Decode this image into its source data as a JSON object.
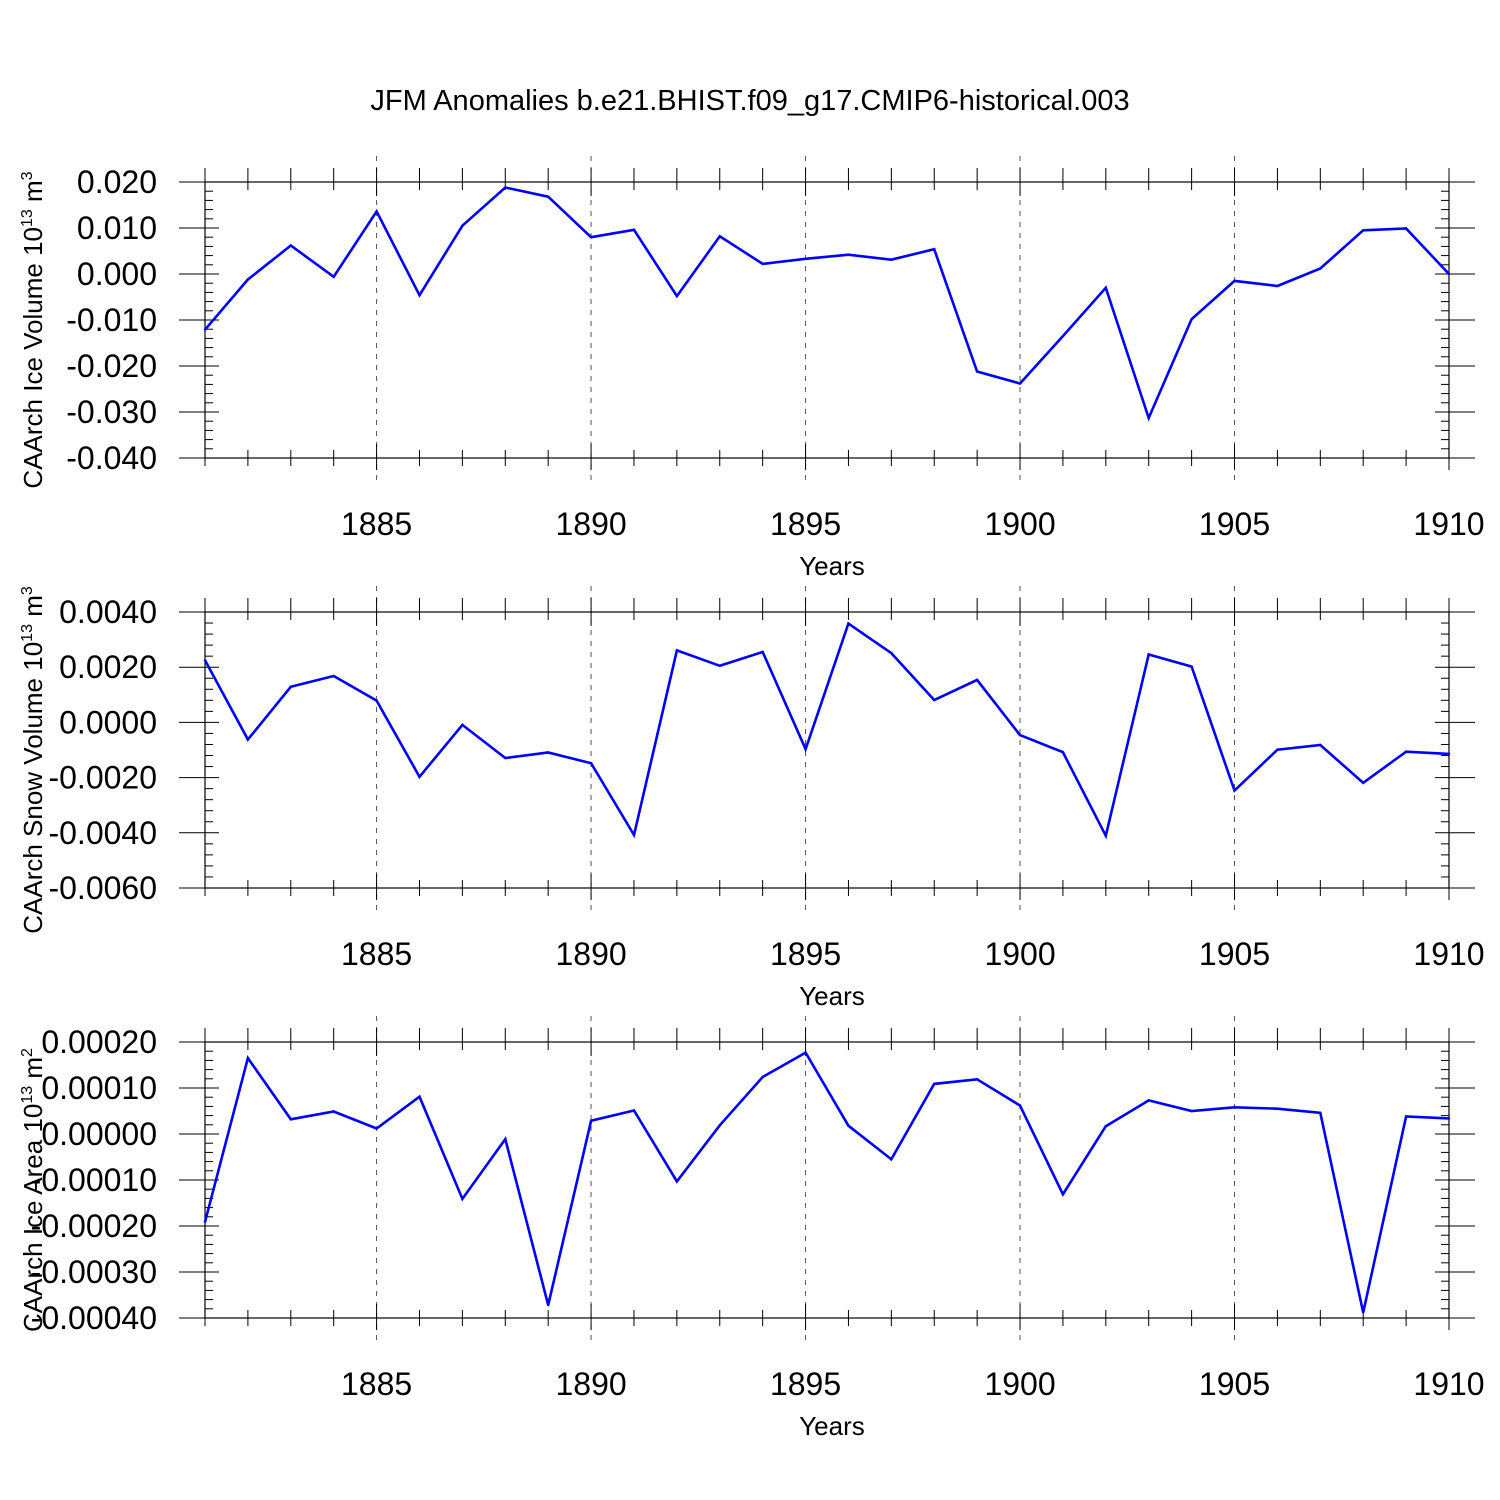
{
  "title": "JFM Anomalies b.e21.BHIST.f09_g17.CMIP6-historical.003",
  "line_color": "#0000ff",
  "chart_data": [
    {
      "type": "line",
      "ylabel_prefix": "CAArch Ice Volume 10",
      "ylabel_exp_base": "13",
      "ylabel_unit": " m",
      "ylabel_exp_unit": "3",
      "xlabel": "Years",
      "xlim": [
        1881,
        1910
      ],
      "ylim": [
        -0.04,
        0.02
      ],
      "x_ticks": [
        1885,
        1890,
        1895,
        1900,
        1905,
        1910
      ],
      "y_ticks": [
        0.02,
        0.01,
        0.0,
        -0.01,
        -0.02,
        -0.03,
        -0.04
      ],
      "y_tick_labels": [
        "0.020",
        "0.010",
        "0.000",
        "-0.010",
        "-0.020",
        "-0.030",
        "-0.040"
      ],
      "x": [
        1881,
        1882,
        1883,
        1884,
        1885,
        1886,
        1887,
        1888,
        1889,
        1890,
        1891,
        1892,
        1893,
        1894,
        1895,
        1896,
        1897,
        1898,
        1899,
        1900,
        1901,
        1902,
        1903,
        1904,
        1905,
        1906,
        1907,
        1908,
        1909,
        1910
      ],
      "values": [
        -0.0121,
        -0.0012,
        0.0062,
        -0.0006,
        0.0136,
        -0.0046,
        0.0105,
        0.0188,
        0.0168,
        0.008,
        0.0096,
        -0.0048,
        0.0082,
        0.0022,
        0.0033,
        0.0042,
        0.0031,
        0.0054,
        -0.0212,
        -0.0238,
        -0.0135,
        -0.003,
        -0.0313,
        -0.0098,
        -0.0015,
        -0.0026,
        0.0012,
        0.0095,
        0.0099,
        0.0
      ]
    },
    {
      "type": "line",
      "ylabel_prefix": "CAArch Snow Volume 10",
      "ylabel_exp_base": "13",
      "ylabel_unit": " m",
      "ylabel_exp_unit": "3",
      "xlabel": "Years",
      "xlim": [
        1881,
        1910
      ],
      "ylim": [
        -0.006,
        0.004
      ],
      "x_ticks": [
        1885,
        1890,
        1895,
        1900,
        1905,
        1910
      ],
      "y_ticks": [
        0.004,
        0.002,
        0.0,
        -0.002,
        -0.004,
        -0.006
      ],
      "y_tick_labels": [
        "0.0040",
        "0.0020",
        "0.0000",
        "-0.0020",
        "-0.0040",
        "-0.0060"
      ],
      "x": [
        1881,
        1882,
        1883,
        1884,
        1885,
        1886,
        1887,
        1888,
        1889,
        1890,
        1891,
        1892,
        1893,
        1894,
        1895,
        1896,
        1897,
        1898,
        1899,
        1900,
        1901,
        1902,
        1903,
        1904,
        1905,
        1906,
        1907,
        1908,
        1909,
        1910
      ],
      "values": [
        0.00225,
        -0.00062,
        0.00129,
        0.00168,
        0.00079,
        -0.00197,
        -9e-05,
        -0.00129,
        -0.00109,
        -0.00148,
        -0.00408,
        0.00261,
        0.00205,
        0.00255,
        -0.00097,
        0.00358,
        0.00251,
        0.00081,
        0.00154,
        -0.00046,
        -0.00108,
        -0.00411,
        0.00246,
        0.00202,
        -0.00247,
        -0.00099,
        -0.00082,
        -0.00219,
        -0.00106,
        -0.00114
      ]
    },
    {
      "type": "line",
      "ylabel_prefix": "CAArch Ice Area 10",
      "ylabel_exp_base": "13",
      "ylabel_unit": " m",
      "ylabel_exp_unit": "2",
      "xlabel": "Years",
      "xlim": [
        1881,
        1910
      ],
      "ylim": [
        -0.0004,
        0.0002
      ],
      "x_ticks": [
        1885,
        1890,
        1895,
        1900,
        1905,
        1910
      ],
      "y_ticks": [
        0.0002,
        0.0001,
        0.0,
        -0.0001,
        -0.0002,
        -0.0003,
        -0.0004
      ],
      "y_tick_labels": [
        "0.00020",
        "0.00010",
        "0.00000",
        "-0.00010",
        "-0.00020",
        "-0.00030",
        "-0.00040"
      ],
      "x": [
        1881,
        1882,
        1883,
        1884,
        1885,
        1886,
        1887,
        1888,
        1889,
        1890,
        1891,
        1892,
        1893,
        1894,
        1895,
        1896,
        1897,
        1898,
        1899,
        1900,
        1901,
        1902,
        1903,
        1904,
        1905,
        1906,
        1907,
        1908,
        1909,
        1910
      ],
      "values": [
        -0.000191,
        0.000165,
        3.2e-05,
        4.9e-05,
        1.2e-05,
        8.1e-05,
        -0.000141,
        -1.1e-05,
        -0.000372,
        2.9e-05,
        5.1e-05,
        -0.000103,
        1.9e-05,
        0.000124,
        0.000177,
        1.8e-05,
        -5.5e-05,
        0.000109,
        0.000119,
        6.2e-05,
        -0.000131,
        1.7e-05,
        7.3e-05,
        5e-05,
        5.8e-05,
        5.5e-05,
        4.6e-05,
        -0.000388,
        3.8e-05,
        3.4e-05
      ]
    }
  ]
}
